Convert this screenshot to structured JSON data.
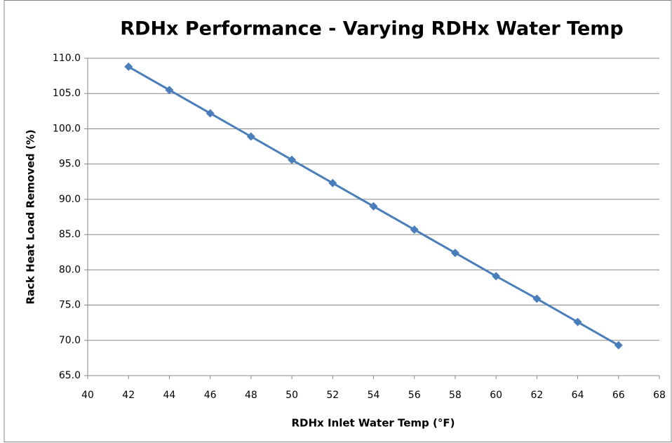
{
  "chart_data": {
    "type": "line",
    "title": "RDHx Performance - Varying RDHx Water Temp",
    "x_label": "RDHx Inlet Water Temp (°F)",
    "y_label": "Rack Heat Load Removed (%)",
    "x": [
      42,
      44,
      46,
      48,
      50,
      52,
      54,
      56,
      58,
      60,
      62,
      64,
      66
    ],
    "series": [
      {
        "name": "Rack Heat Load Removed",
        "color": "#4a7ebb",
        "values": [
          108.8,
          105.5,
          102.2,
          98.9,
          95.6,
          92.3,
          89.0,
          85.7,
          82.4,
          79.1,
          75.9,
          72.6,
          69.3
        ]
      }
    ],
    "xlim": [
      40,
      68
    ],
    "xticks": [
      40,
      42,
      44,
      46,
      48,
      50,
      52,
      54,
      56,
      58,
      60,
      62,
      64,
      66,
      68
    ],
    "ylim": [
      65,
      110
    ],
    "yticks": [
      {
        "value": 65,
        "label": "65.0"
      },
      {
        "value": 70,
        "label": "70.0"
      },
      {
        "value": 75,
        "label": "75.0"
      },
      {
        "value": 80,
        "label": "80.0"
      },
      {
        "value": 85,
        "label": "85.0"
      },
      {
        "value": 90,
        "label": "90.0"
      },
      {
        "value": 95,
        "label": "95.0"
      },
      {
        "value": 100,
        "label": "100.0"
      },
      {
        "value": 105,
        "label": "105.0"
      },
      {
        "value": 110,
        "label": "110.0"
      }
    ],
    "grid": true
  }
}
